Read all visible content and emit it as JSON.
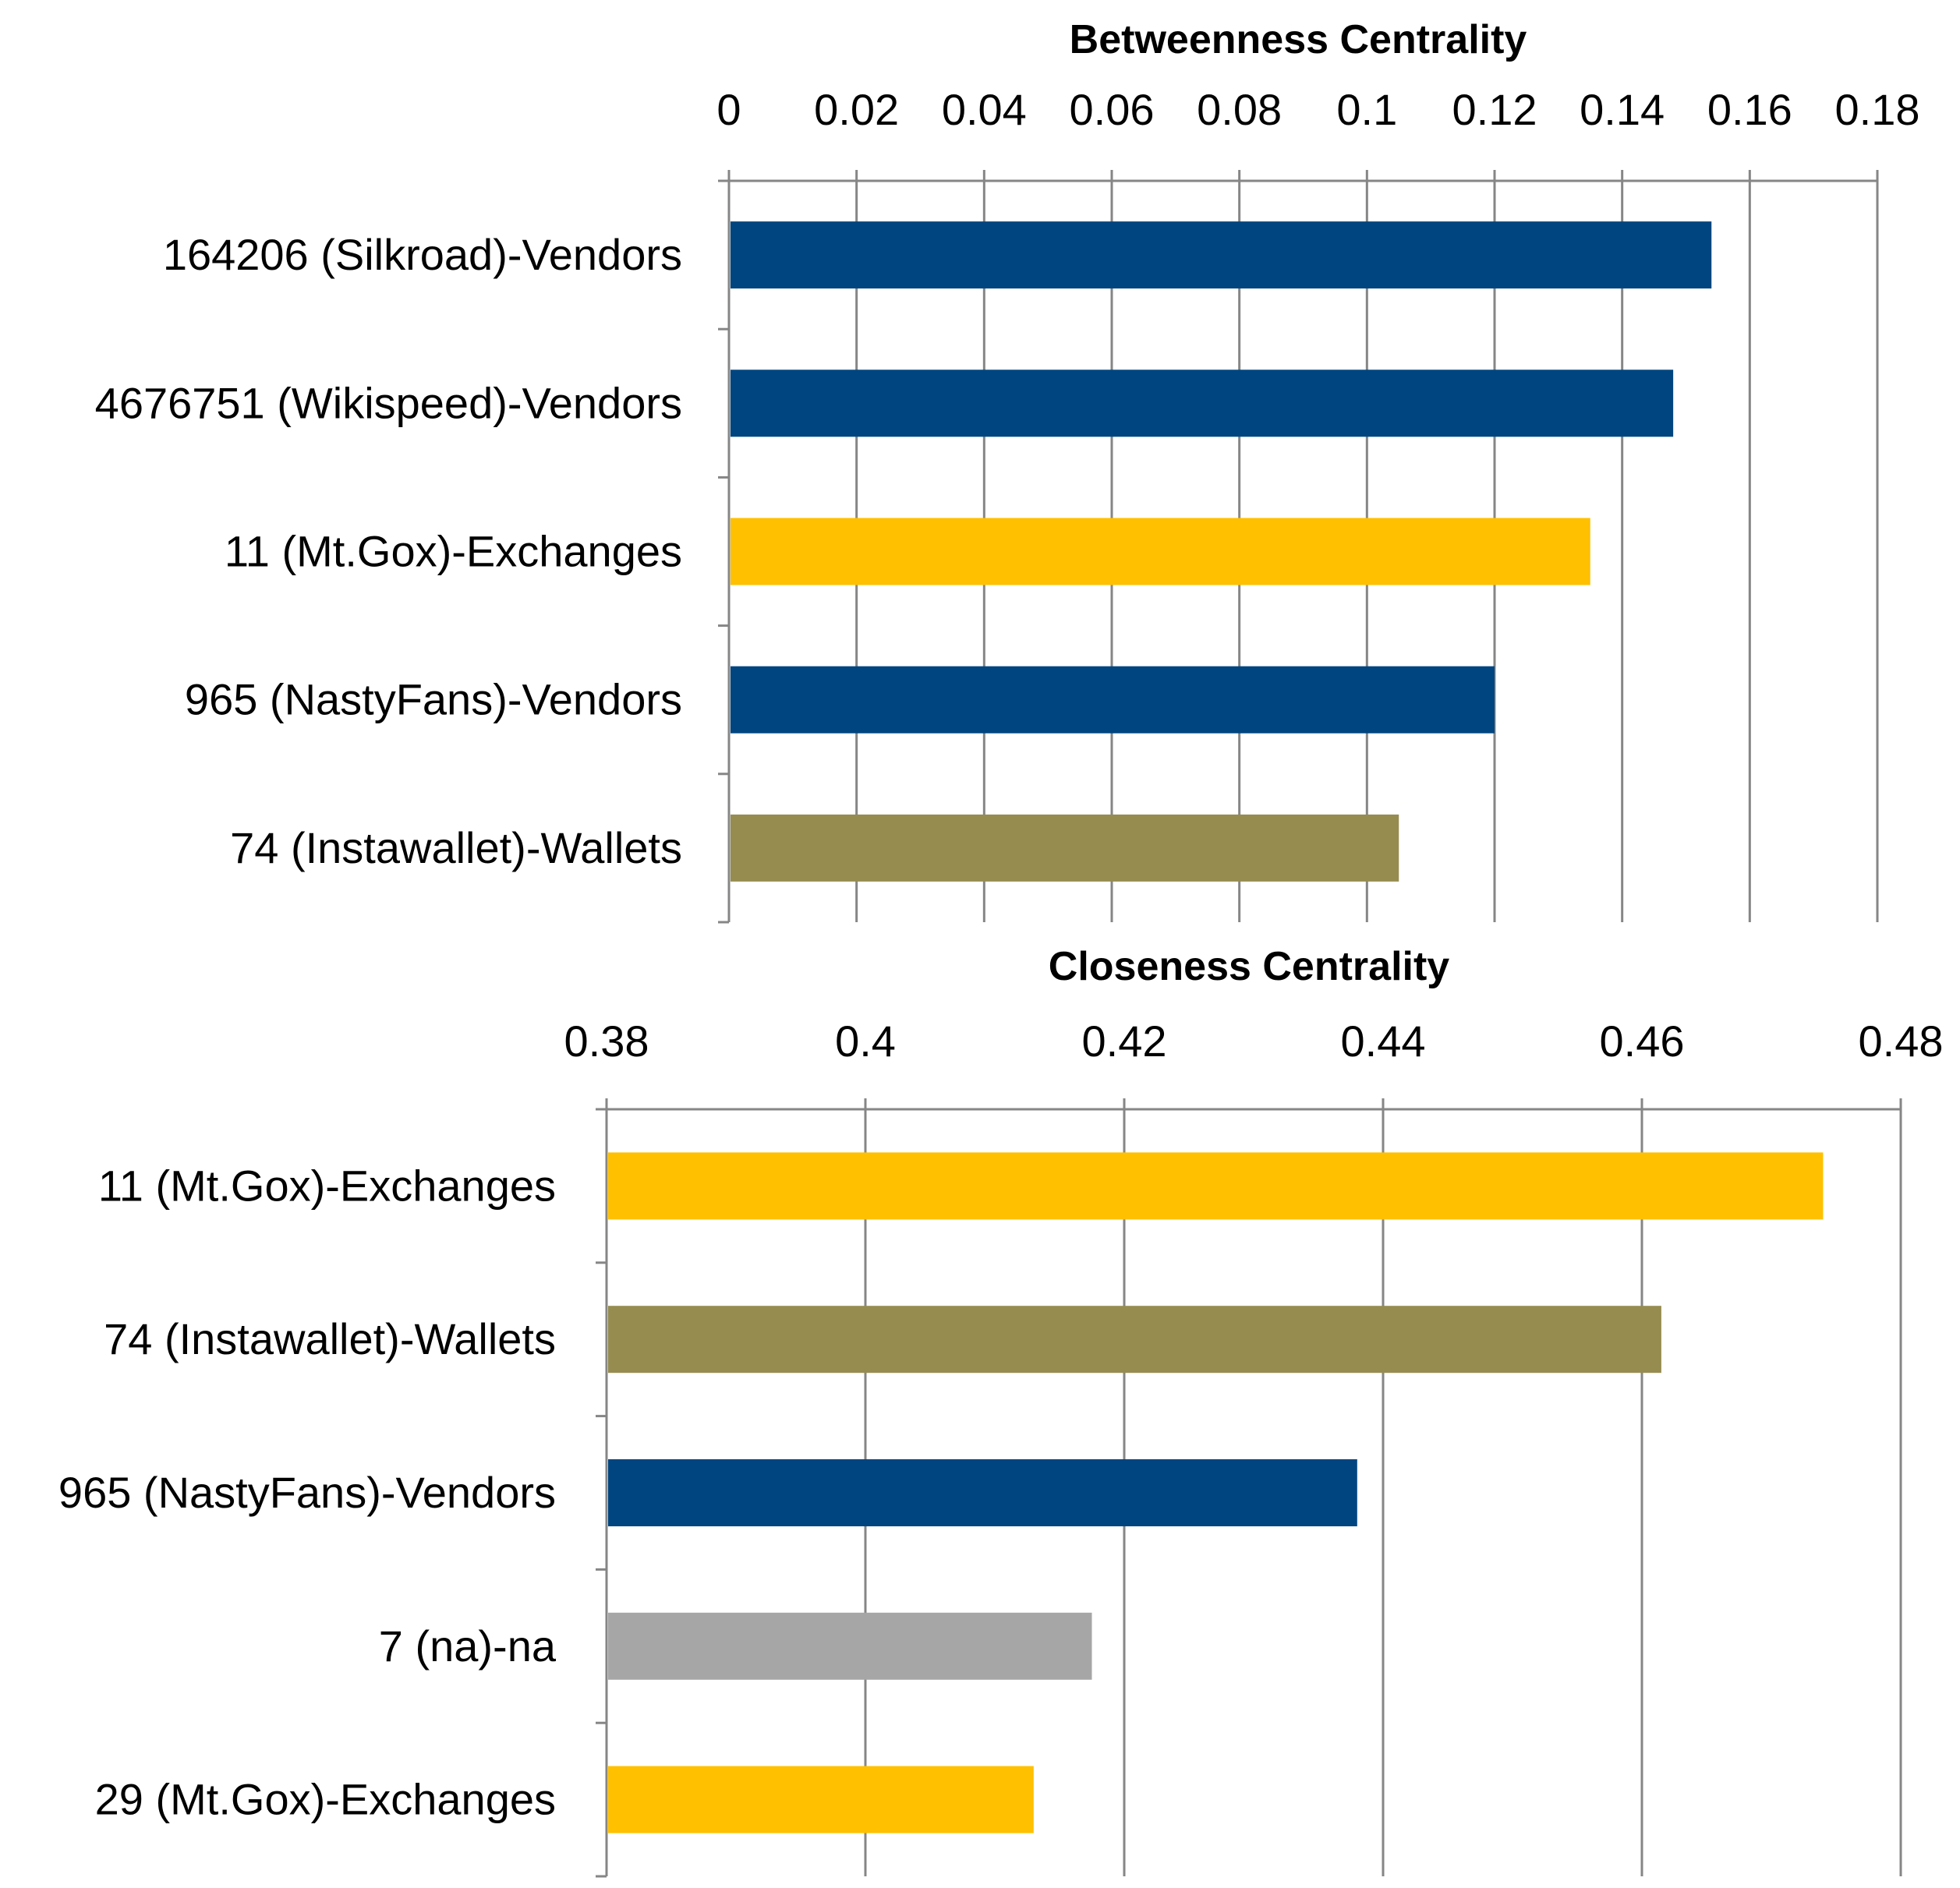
{
  "palette": {
    "Vendors": "#00457F",
    "Exchanges": "#FFC000",
    "Wallets": "#968C50",
    "na": "#A6A6A6",
    "axis": "#868686"
  },
  "chart_data": [
    {
      "type": "bar",
      "orientation": "horizontal",
      "title": "Betweenness Centrality",
      "xlim": [
        0,
        0.18
      ],
      "ticks": [
        0,
        0.02,
        0.04,
        0.06,
        0.08,
        0.1,
        0.12,
        0.14,
        0.16,
        0.18
      ],
      "tick_labels": [
        "0",
        "0.02",
        "0.04",
        "0.06",
        "0.08",
        "0.1",
        "0.12",
        "0.14",
        "0.16",
        "0.18"
      ],
      "axis_position": "top",
      "grid": true,
      "categories": [
        "164206 (Silkroad)-Vendors",
        "4676751 (Wikispeed)-Vendors",
        "11 (Mt.Gox)-Exchanges",
        "965 (NastyFans)-Vendors",
        "74 (Instawallet)-Wallets"
      ],
      "groups": [
        "Vendors",
        "Vendors",
        "Exchanges",
        "Vendors",
        "Wallets"
      ],
      "values": [
        0.154,
        0.148,
        0.135,
        0.12,
        0.105
      ]
    },
    {
      "type": "bar",
      "orientation": "horizontal",
      "title": "Closeness Centrality",
      "xlim": [
        0.38,
        0.48
      ],
      "ticks": [
        0.38,
        0.4,
        0.42,
        0.44,
        0.46,
        0.48
      ],
      "tick_labels": [
        "0.38",
        "0.4",
        "0.42",
        "0.44",
        "0.46",
        "0.48"
      ],
      "axis_position": "top",
      "grid": true,
      "categories": [
        "11 (Mt.Gox)-Exchanges",
        "74 (Instawallet)-Wallets",
        "965 (NastyFans)-Vendors",
        "7 (na)-na",
        "29 (Mt.Gox)-Exchanges"
      ],
      "groups": [
        "Exchanges",
        "Wallets",
        "Vendors",
        "na",
        "Exchanges"
      ],
      "values": [
        0.474,
        0.4615,
        0.438,
        0.4175,
        0.413
      ]
    }
  ]
}
